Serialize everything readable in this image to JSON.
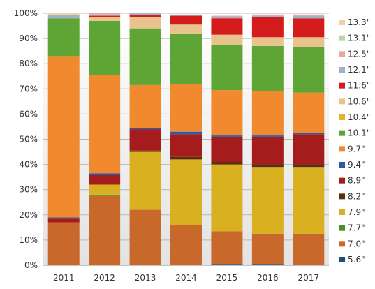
{
  "chart_data": {
    "type": "bar",
    "stacked": true,
    "categories": [
      "2011",
      "2012",
      "2013",
      "2014",
      "2015",
      "2016",
      "2017"
    ],
    "ylim": [
      0,
      100
    ],
    "yticks": [
      "0%",
      "10%",
      "20%",
      "30%",
      "40%",
      "50%",
      "60%",
      "70%",
      "80%",
      "90%",
      "100%"
    ],
    "grid": true,
    "legend_position": "right",
    "series": [
      {
        "name": "5.6\"",
        "color": "#1f4e79",
        "values": [
          0,
          0,
          0,
          0,
          0.5,
          0.5,
          0
        ]
      },
      {
        "name": "7.0\"",
        "color": "#c8682a",
        "values": [
          17,
          27.5,
          22,
          16,
          13,
          12,
          12.5
        ]
      },
      {
        "name": "7.7\"",
        "color": "#4e8f2a",
        "values": [
          0,
          0.5,
          0,
          0,
          0,
          0,
          0
        ]
      },
      {
        "name": "7.9\"",
        "color": "#d8b020",
        "values": [
          0,
          4,
          23,
          26,
          26.5,
          26.5,
          26.5
        ]
      },
      {
        "name": "8.2\"",
        "color": "#5a2e0e",
        "values": [
          0,
          0,
          0.5,
          1,
          1,
          1,
          1
        ]
      },
      {
        "name": "8.9\"",
        "color": "#a51c1c",
        "values": [
          1.5,
          4,
          8.5,
          9,
          10,
          11,
          12
        ]
      },
      {
        "name": "9.4\"",
        "color": "#2a5aa8",
        "values": [
          0.5,
          0.5,
          0.5,
          1,
          0.5,
          0.5,
          0.5
        ]
      },
      {
        "name": "9.7\"",
        "color": "#f18a2e",
        "values": [
          64,
          39,
          17,
          19,
          18,
          17.5,
          16
        ]
      },
      {
        "name": "10.1\"",
        "color": "#5fa535",
        "values": [
          15,
          21.5,
          22.5,
          20,
          18,
          18,
          18
        ]
      },
      {
        "name": "10.4\"",
        "color": "#e3b42a",
        "values": [
          0,
          0,
          0,
          0,
          0,
          0,
          0
        ]
      },
      {
        "name": "10.6\"",
        "color": "#e8c48c",
        "values": [
          0,
          1.5,
          4.5,
          3.5,
          4,
          3.5,
          4
        ]
      },
      {
        "name": "11.6\"",
        "color": "#d41c1c",
        "values": [
          0,
          0.5,
          1,
          3.5,
          6.5,
          8,
          7.5
        ]
      },
      {
        "name": "12.1\"",
        "color": "#9fb3c8",
        "values": [
          1.5,
          0.5,
          0.5,
          0.5,
          0.5,
          0.5,
          1
        ]
      },
      {
        "name": "12.5\"",
        "color": "#e8a8a0",
        "values": [
          0,
          0.5,
          0,
          0,
          0.5,
          0.5,
          0.5
        ]
      },
      {
        "name": "13.1\"",
        "color": "#b7d6a6",
        "values": [
          0,
          0,
          0,
          0,
          0,
          0,
          0
        ]
      },
      {
        "name": "13.3\"",
        "color": "#f4cfa2",
        "values": [
          0.5,
          0,
          0,
          0,
          0,
          0,
          0
        ]
      }
    ]
  }
}
